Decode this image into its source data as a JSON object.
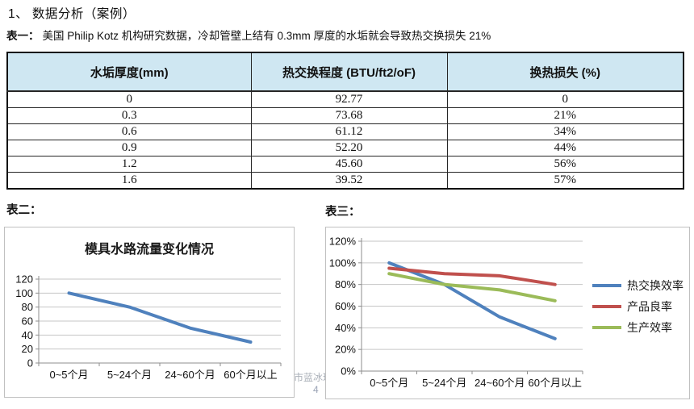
{
  "page": {
    "title": "1、  数据分析（案例）",
    "table1_label": "表一：",
    "table1_caption": "美国 Philip Kotz 机构研究数据，冷却管壁上结有 0.3mm 厚度的水垢就会导致热交换损失 21%",
    "table2_label": "表二：",
    "table3_label": "表三：",
    "watermark": "市蓝冰环",
    "page_number": "4"
  },
  "colors": {
    "table_header_bg": "#cfe7f2",
    "chart_box_border": "#c0c0c0",
    "grid_line": "#c6c6c6",
    "axis_line": "#8e8e8e",
    "series_blue": "#4f81bd",
    "series_red": "#c0504d",
    "series_green": "#9bbb59",
    "watermark_color": "#aab0b8"
  },
  "table": {
    "headers": [
      "水垢厚度(mm)",
      "热交换程度 (BTU/ft2/oF)",
      "换热损失 (%)"
    ],
    "rows": [
      [
        "0",
        "92.77",
        "0"
      ],
      [
        "0.3",
        "73.68",
        "21%"
      ],
      [
        "0.6",
        "61.12",
        "34%"
      ],
      [
        "0.9",
        "52.20",
        "44%"
      ],
      [
        "1.2",
        "45.60",
        "56%"
      ],
      [
        "1.6",
        "39.52",
        "57%"
      ]
    ]
  },
  "chart_data": [
    {
      "type": "line",
      "title": "模具水路流量变化情况",
      "categories": [
        "0~5个月",
        "5~24个月",
        "24~60个月",
        "60个月以上"
      ],
      "series": [
        {
          "name": "模具水路流量",
          "color": "#4f81bd",
          "values": [
            100,
            80,
            50,
            30
          ]
        }
      ],
      "ylim": [
        0,
        120
      ],
      "ytick_step": 20,
      "ytick_format": "number",
      "grid": true,
      "legend": false
    },
    {
      "type": "line",
      "title": "",
      "categories": [
        "0~5个月",
        "5~24个月",
        "24~60个月",
        "60个月以上"
      ],
      "series": [
        {
          "name": "热交换效率",
          "color": "#4f81bd",
          "values": [
            100,
            80,
            50,
            30
          ]
        },
        {
          "name": "产品良率",
          "color": "#c0504d",
          "values": [
            95,
            90,
            88,
            80
          ]
        },
        {
          "name": "生产效率",
          "color": "#9bbb59",
          "values": [
            90,
            80,
            75,
            65
          ]
        }
      ],
      "ylim": [
        0,
        120
      ],
      "ytick_step": 20,
      "ytick_format": "percent",
      "grid": true,
      "legend": true,
      "legend_position": "right"
    }
  ]
}
